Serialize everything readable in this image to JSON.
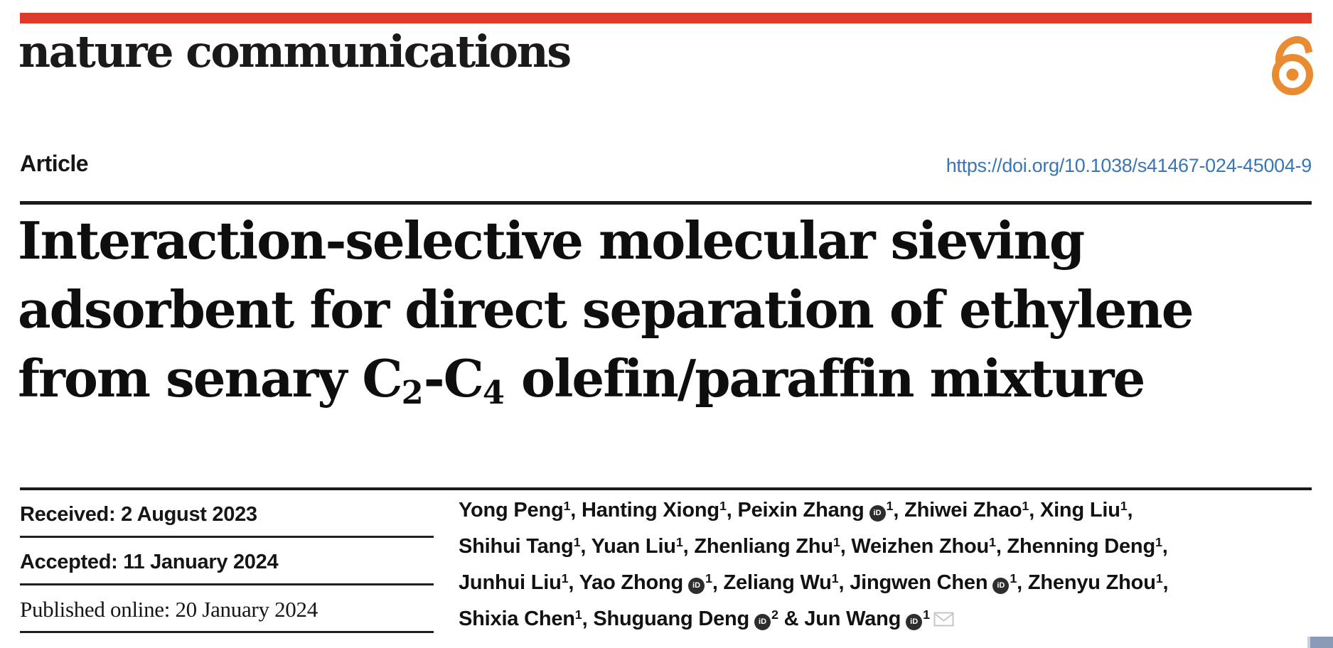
{
  "brand": {
    "journal": "nature communications",
    "topbar_color": "#dd3a29",
    "open_access_icon": "open-access-open-lock",
    "open_access_color": "#e98b33"
  },
  "article": {
    "type_label": "Article",
    "doi": "https://doi.org/10.1038/s41467-024-45004-9",
    "doi_color": "#3a76b4"
  },
  "title": {
    "lines": [
      [
        {
          "text": "Interaction-selective molecular sieving"
        }
      ],
      [
        {
          "text": "adsorbent for direct separation of ethylene"
        }
      ],
      [
        {
          "text": "from senary C"
        },
        {
          "sub": "2"
        },
        {
          "text": "-C"
        },
        {
          "sub": "4"
        },
        {
          "text": " olefin/paraffin mixture"
        }
      ]
    ]
  },
  "history": {
    "rows": [
      {
        "text": "Received: 2 August 2023",
        "serif": false
      },
      {
        "text": "Accepted: 11 January 2024",
        "serif": false
      },
      {
        "text": "Published online: 20 January 2024",
        "serif": true
      }
    ]
  },
  "authors": {
    "orcid_icon_label": "iD",
    "email_icon": "envelope",
    "lines": [
      [
        {
          "name": "Yong Peng",
          "sup": "1",
          "after": ", "
        },
        {
          "name": "Hanting Xiong",
          "sup": "1",
          "after": ", "
        },
        {
          "name": "Peixin Zhang",
          "orcid": true,
          "sup": "1",
          "after": ", "
        },
        {
          "name": "Zhiwei Zhao",
          "sup": "1",
          "after": ", "
        },
        {
          "name": "Xing Liu",
          "sup": "1",
          "after": ","
        }
      ],
      [
        {
          "name": "Shihui Tang",
          "sup": "1",
          "after": ", "
        },
        {
          "name": "Yuan Liu",
          "sup": "1",
          "after": ", "
        },
        {
          "name": "Zhenliang Zhu",
          "sup": "1",
          "after": ", "
        },
        {
          "name": "Weizhen Zhou",
          "sup": "1",
          "after": ", "
        },
        {
          "name": "Zhenning Deng",
          "sup": "1",
          "after": ","
        }
      ],
      [
        {
          "name": "Junhui Liu",
          "sup": "1",
          "after": ", "
        },
        {
          "name": "Yao Zhong",
          "orcid": true,
          "sup": "1",
          "after": ", "
        },
        {
          "name": "Zeliang Wu",
          "sup": "1",
          "after": ", "
        },
        {
          "name": "Jingwen Chen",
          "orcid": true,
          "sup": "1",
          "after": ", "
        },
        {
          "name": "Zhenyu Zhou",
          "sup": "1",
          "after": ","
        }
      ],
      [
        {
          "name": "Shixia Chen",
          "sup": "1",
          "after": ", "
        },
        {
          "name": "Shuguang Deng",
          "orcid": true,
          "sup": "2",
          "after": " & "
        },
        {
          "name": "Jun Wang",
          "orcid": true,
          "sup": "1",
          "email": true
        }
      ]
    ]
  },
  "footer": {
    "corner_color": "#8b9ab6"
  }
}
